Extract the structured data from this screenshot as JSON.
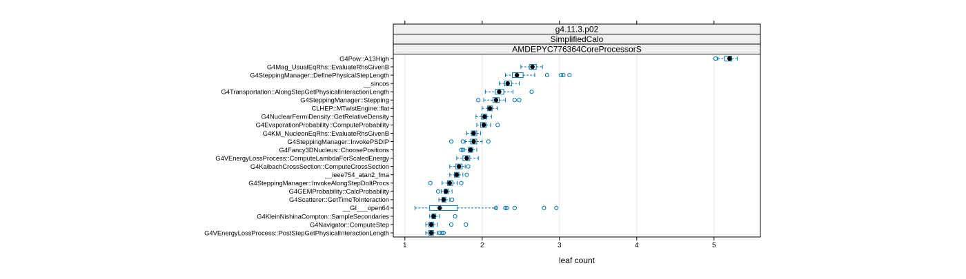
{
  "chart_data": {
    "type": "boxplot",
    "orientation": "horizontal",
    "strips": [
      "g4.11.3.p02",
      "SimplifiedCalo",
      "AMDEPYC776364CoreProcessorS"
    ],
    "xlabel": "leaf count",
    "xlim": [
      0.85,
      5.6
    ],
    "xticks": [
      1,
      2,
      3,
      4,
      5
    ],
    "grid": true,
    "colors": {
      "box": "#0072B2",
      "median_dot": "#000000",
      "grid": "#e6e6e6",
      "strip_fill": "#f0f0f0",
      "frame": "#000000"
    },
    "categories": [
      {
        "label": "G4Pow::A13High",
        "whisker_low": 5.05,
        "q1": 5.14,
        "median": 5.2,
        "q3": 5.23,
        "whisker_high": 5.3,
        "outliers": [
          5.02
        ]
      },
      {
        "label": "G4Mag_UsualEqRhs::EvaluateRhsGivenB",
        "whisker_low": 2.5,
        "q1": 2.61,
        "median": 2.65,
        "q3": 2.7,
        "whisker_high": 2.78,
        "outliers": []
      },
      {
        "label": "G4SteppingManager::DefinePhysicalStepLength",
        "whisker_low": 2.3,
        "q1": 2.39,
        "median": 2.45,
        "q3": 2.53,
        "whisker_high": 2.68,
        "outliers": [
          2.84,
          3.02,
          3.05,
          3.13
        ]
      },
      {
        "label": "__sincos",
        "whisker_low": 2.22,
        "q1": 2.29,
        "median": 2.33,
        "q3": 2.38,
        "whisker_high": 2.48,
        "outliers": []
      },
      {
        "label": "G4Transportation::AlongStepGetPhysicalInteractionLength",
        "whisker_low": 2.04,
        "q1": 2.17,
        "median": 2.22,
        "q3": 2.28,
        "whisker_high": 2.4,
        "outliers": [
          2.64
        ]
      },
      {
        "label": "G4SteppingManager::Stepping",
        "whisker_low": 2.02,
        "q1": 2.14,
        "median": 2.18,
        "q3": 2.22,
        "whisker_high": 2.3,
        "outliers": [
          1.95,
          2.42,
          2.48
        ]
      },
      {
        "label": "CLHEP::MTwistEngine::flat",
        "whisker_low": 2.0,
        "q1": 2.07,
        "median": 2.1,
        "q3": 2.13,
        "whisker_high": 2.2,
        "outliers": []
      },
      {
        "label": "G4NuclearFermiDensity::GetRelativeDensity",
        "whisker_low": 1.92,
        "q1": 1.99,
        "median": 2.03,
        "q3": 2.06,
        "whisker_high": 2.12,
        "outliers": []
      },
      {
        "label": "G4EvaporationProbability::ComputeProbability",
        "whisker_low": 1.93,
        "q1": 1.98,
        "median": 2.02,
        "q3": 2.05,
        "whisker_high": 2.11,
        "outliers": [
          2.2
        ]
      },
      {
        "label": "G4KM_NucleonEqRhs::EvaluateRhsGivenB",
        "whisker_low": 1.8,
        "q1": 1.86,
        "median": 1.89,
        "q3": 1.93,
        "whisker_high": 1.98,
        "outliers": []
      },
      {
        "label": "G4SteppingManager::InvokePSDIP",
        "whisker_low": 1.78,
        "q1": 1.85,
        "median": 1.89,
        "q3": 1.93,
        "whisker_high": 2.0,
        "outliers": [
          1.6,
          1.75,
          2.08
        ]
      },
      {
        "label": "G4Fancy3DNucleus::ChoosePositions",
        "whisker_low": 1.77,
        "q1": 1.82,
        "median": 1.85,
        "q3": 1.88,
        "whisker_high": 1.93,
        "outliers": [
          1.73,
          1.75
        ]
      },
      {
        "label": "G4VEnergyLossProcess::ComputeLambdaForScaledEnergy",
        "whisker_low": 1.67,
        "q1": 1.75,
        "median": 1.8,
        "q3": 1.84,
        "whisker_high": 1.95,
        "outliers": []
      },
      {
        "label": "G4KalbachCrossSection::ComputeCrossSection",
        "whisker_low": 1.58,
        "q1": 1.66,
        "median": 1.7,
        "q3": 1.74,
        "whisker_high": 1.78,
        "outliers": [
          1.82
        ]
      },
      {
        "label": "__ieee754_atan2_fma",
        "whisker_low": 1.58,
        "q1": 1.64,
        "median": 1.67,
        "q3": 1.7,
        "whisker_high": 1.75,
        "outliers": [
          1.8
        ]
      },
      {
        "label": "G4SteppingManager::InvokeAlongStepDoItProcs",
        "whisker_low": 1.48,
        "q1": 1.55,
        "median": 1.58,
        "q3": 1.62,
        "whisker_high": 1.68,
        "outliers": [
          1.33,
          1.73
        ]
      },
      {
        "label": "G4GEMProbability::CalcProbability",
        "whisker_low": 1.47,
        "q1": 1.51,
        "median": 1.53,
        "q3": 1.56,
        "whisker_high": 1.61,
        "outliers": [
          1.43
        ]
      },
      {
        "label": "G4Scatterer::GetTimeToInteraction",
        "whisker_low": 1.44,
        "q1": 1.48,
        "median": 1.5,
        "q3": 1.53,
        "whisker_high": 1.58,
        "outliers": [
          1.61
        ]
      },
      {
        "label": "__GI___open64",
        "whisker_low": 1.13,
        "q1": 1.32,
        "median": 1.45,
        "q3": 1.68,
        "whisker_high": 2.18,
        "outliers": [
          2.18,
          2.3,
          2.32,
          2.42,
          2.8,
          2.96
        ]
      },
      {
        "label": "G4KleinNishinaCompton::SampleSecondaries",
        "whisker_low": 1.32,
        "q1": 1.35,
        "median": 1.37,
        "q3": 1.4,
        "whisker_high": 1.45,
        "outliers": [
          1.65
        ]
      },
      {
        "label": "G4Navigator::ComputeStep",
        "whisker_low": 1.27,
        "q1": 1.31,
        "median": 1.34,
        "q3": 1.37,
        "whisker_high": 1.42,
        "outliers": [
          1.6,
          1.79
        ]
      },
      {
        "label": "G4VEnergyLossProcess::PostStepGetPhysicalInteractionLength",
        "whisker_low": 1.27,
        "q1": 1.31,
        "median": 1.34,
        "q3": 1.37,
        "whisker_high": 1.42,
        "outliers": [
          1.45,
          1.48,
          1.5
        ]
      }
    ]
  }
}
